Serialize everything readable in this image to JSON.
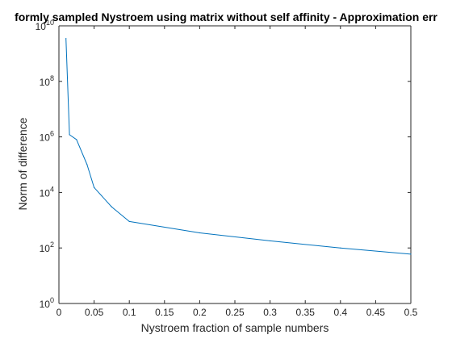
{
  "chart_data": {
    "type": "line",
    "title": "formly sampled Nystroem using matrix without self affinity - Approximation err",
    "xlabel": "Nystroem fraction of sample numbers",
    "ylabel": "Norm of difference",
    "xlim": [
      0,
      0.5
    ],
    "ylim": [
      1,
      10000000000
    ],
    "yscale": "log",
    "grid": false,
    "legend": "none",
    "x_ticks": [
      {
        "value": 0,
        "label": "0"
      },
      {
        "value": 0.05,
        "label": "0.05"
      },
      {
        "value": 0.1,
        "label": "0.1"
      },
      {
        "value": 0.15,
        "label": "0.15"
      },
      {
        "value": 0.2,
        "label": "0.2"
      },
      {
        "value": 0.25,
        "label": "0.25"
      },
      {
        "value": 0.3,
        "label": "0.3"
      },
      {
        "value": 0.35,
        "label": "0.35"
      },
      {
        "value": 0.4,
        "label": "0.4"
      },
      {
        "value": 0.45,
        "label": "0.45"
      },
      {
        "value": 0.5,
        "label": "0.5"
      }
    ],
    "y_ticks": [
      {
        "value": 1,
        "base": "10",
        "exp": "0"
      },
      {
        "value": 100,
        "base": "10",
        "exp": "2"
      },
      {
        "value": 10000,
        "base": "10",
        "exp": "4"
      },
      {
        "value": 1000000,
        "base": "10",
        "exp": "6"
      },
      {
        "value": 100000000,
        "base": "10",
        "exp": "8"
      },
      {
        "value": 10000000000,
        "base": "10",
        "exp": "10"
      }
    ],
    "series": [
      {
        "color": "#0072bd",
        "x": [
          0.01,
          0.015,
          0.025,
          0.04,
          0.05,
          0.075,
          0.1,
          0.2,
          0.3,
          0.4,
          0.5
        ],
        "y": [
          3500000000,
          1200000,
          800000,
          100000,
          15000,
          3000,
          900,
          350,
          180,
          100,
          60
        ]
      }
    ]
  }
}
